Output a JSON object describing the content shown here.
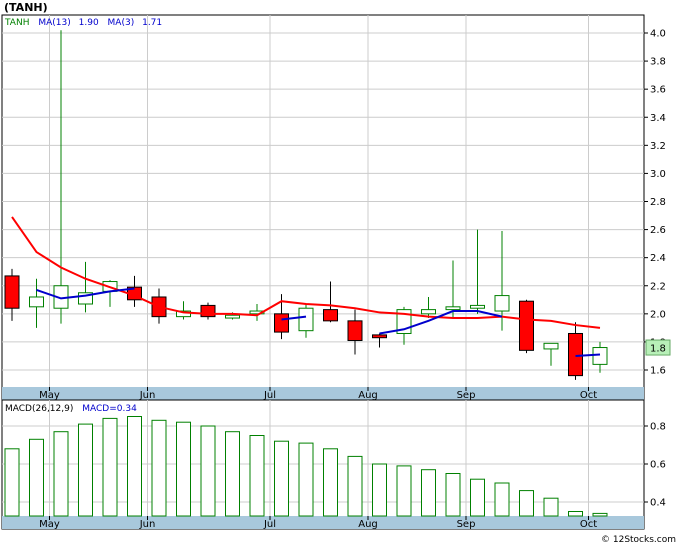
{
  "header": {
    "title": "(TANH)"
  },
  "price_legend": {
    "symbol": "TANH",
    "ma13_label": "MA(13)",
    "ma13_value": "1.90",
    "ma3_label": "MA(3)",
    "ma3_value": "1.71"
  },
  "macd_legend": {
    "label": "MACD(26,12,9)",
    "value_label": "MACD=0.34"
  },
  "last_price_label": "1.8",
  "credit": "© 12Stocks.com",
  "colors": {
    "up": "#008000",
    "down": "#ff0000",
    "ma13": "#ff0000",
    "ma3": "#0000cc",
    "axis_band": "#a8c8dc",
    "grid": "#cccccc",
    "label_box": "#b8f0b8"
  },
  "chart_data": [
    {
      "type": "candlestick",
      "symbol": "TANH",
      "title": "(TANH)",
      "y_ticks": [
        1.6,
        1.8,
        2.0,
        2.2,
        2.4,
        2.6,
        2.8,
        3.0,
        3.2,
        3.4,
        3.6,
        3.8,
        4.0
      ],
      "y_tick_labels": [
        "1.6",
        "1.8",
        "2.0",
        "2.2",
        "2.4",
        "2.6",
        "2.8",
        "3.0",
        "3.2",
        "3.4",
        "3.6",
        "3.8",
        "4.0"
      ],
      "ylim": [
        1.5,
        4.1
      ],
      "x_tick_labels": [
        "May",
        "Jun",
        "Jul",
        "Aug",
        "Sep",
        "Oct"
      ],
      "x_tick_index": [
        1,
        5,
        10,
        14,
        18,
        23
      ],
      "candles": [
        {
          "open": 2.27,
          "high": 2.32,
          "low": 1.95,
          "close": 2.04
        },
        {
          "open": 2.05,
          "high": 2.25,
          "low": 1.9,
          "close": 2.12
        },
        {
          "open": 2.04,
          "high": 4.02,
          "low": 1.93,
          "close": 2.2
        },
        {
          "open": 2.07,
          "high": 2.37,
          "low": 2.01,
          "close": 2.15
        },
        {
          "open": 2.16,
          "high": 2.24,
          "low": 2.05,
          "close": 2.23
        },
        {
          "open": 2.19,
          "high": 2.27,
          "low": 2.05,
          "close": 2.1
        },
        {
          "open": 2.12,
          "high": 2.18,
          "low": 1.93,
          "close": 1.98
        },
        {
          "open": 1.98,
          "high": 2.09,
          "low": 1.96,
          "close": 2.02
        },
        {
          "open": 2.06,
          "high": 2.08,
          "low": 1.96,
          "close": 1.98
        },
        {
          "open": 1.97,
          "high": 2.01,
          "low": 1.96,
          "close": 1.99
        },
        {
          "open": 2.0,
          "high": 2.07,
          "low": 1.95,
          "close": 2.02
        },
        {
          "open": 2.0,
          "high": 2.14,
          "low": 1.82,
          "close": 1.87
        },
        {
          "open": 1.88,
          "high": 2.07,
          "low": 1.83,
          "close": 2.04
        },
        {
          "open": 2.03,
          "high": 2.23,
          "low": 1.94,
          "close": 1.95
        },
        {
          "open": 1.95,
          "high": 2.03,
          "low": 1.71,
          "close": 1.81
        },
        {
          "open": 1.85,
          "high": 1.86,
          "low": 1.76,
          "close": 1.83
        },
        {
          "open": 1.86,
          "high": 2.05,
          "low": 1.78,
          "close": 2.03
        },
        {
          "open": 2.0,
          "high": 2.12,
          "low": 1.97,
          "close": 2.03
        },
        {
          "open": 2.03,
          "high": 2.38,
          "low": 1.97,
          "close": 2.05
        },
        {
          "open": 2.04,
          "high": 2.6,
          "low": 2.0,
          "close": 2.06
        },
        {
          "open": 2.02,
          "high": 2.59,
          "low": 1.88,
          "close": 2.13
        },
        {
          "open": 2.09,
          "high": 2.1,
          "low": 1.72,
          "close": 1.74
        },
        {
          "open": 1.75,
          "high": 1.79,
          "low": 1.63,
          "close": 1.79
        },
        {
          "open": 1.86,
          "high": 1.94,
          "low": 1.53,
          "close": 1.56
        },
        {
          "open": 1.64,
          "high": 1.8,
          "low": 1.58,
          "close": 1.76
        }
      ],
      "series": [
        {
          "name": "MA(13)",
          "values": [
            2.69,
            2.44,
            2.33,
            2.25,
            2.19,
            2.13,
            2.05,
            2.01,
            2.0,
            2.0,
            1.99,
            2.09,
            2.07,
            2.06,
            2.04,
            2.01,
            2.0,
            1.98,
            1.97,
            1.97,
            1.98,
            1.96,
            1.95,
            1.92,
            1.9
          ]
        },
        {
          "name": "MA(3)",
          "values": [
            null,
            2.17,
            2.11,
            2.13,
            2.16,
            2.18,
            null,
            null,
            null,
            null,
            null,
            1.96,
            1.98,
            null,
            null,
            1.86,
            1.89,
            1.95,
            2.02,
            2.02,
            1.98,
            null,
            null,
            1.7,
            1.71
          ]
        }
      ]
    },
    {
      "type": "bar",
      "name": "MACD(26,12,9)",
      "y_ticks": [
        0.4,
        0.6,
        0.8
      ],
      "y_tick_labels": [
        "0.4",
        "0.6",
        "0.8"
      ],
      "ylim": [
        0.3,
        0.9
      ],
      "x_tick_labels": [
        "May",
        "Jun",
        "Jul",
        "Aug",
        "Sep",
        "Oct"
      ],
      "x_tick_index": [
        1,
        5,
        10,
        14,
        18,
        23
      ],
      "values": [
        0.68,
        0.73,
        0.77,
        0.81,
        0.84,
        0.85,
        0.83,
        0.82,
        0.8,
        0.77,
        0.75,
        0.72,
        0.71,
        0.68,
        0.64,
        0.6,
        0.59,
        0.57,
        0.55,
        0.52,
        0.5,
        0.46,
        0.42,
        0.35,
        0.34
      ]
    }
  ]
}
